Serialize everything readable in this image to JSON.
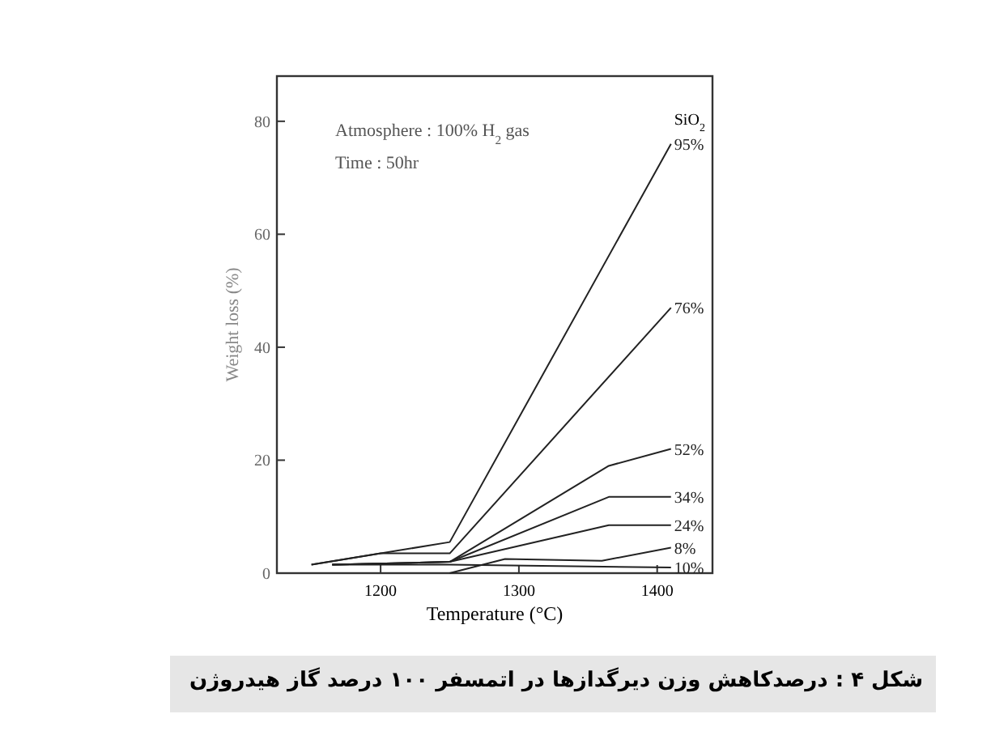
{
  "chart_data": {
    "type": "line",
    "xlabel": "Temperature (°C)",
    "ylabel": "Weight loss (%)",
    "legend_title": "SiO$_{2}$",
    "xlim": [
      1125,
      1440
    ],
    "ylim": [
      0,
      88
    ],
    "xticks": [
      1200,
      1300,
      1400
    ],
    "yticks": [
      0,
      20,
      40,
      60,
      80
    ],
    "annotations": [
      "Atmosphere : 100% H$_{2}$ gas",
      "Time : 50hr",
      "شکل ۴ : درصدکاهش وزن دیرگدازها در اتمسفر ۱۰۰ درصد گاز هیدروژن"
    ],
    "series": [
      {
        "name": "95%",
        "color": "#222222",
        "x": [
          1150,
          1250,
          1410
        ],
        "values": [
          1.5,
          5.5,
          76
        ]
      },
      {
        "name": "76%",
        "color": "#222222",
        "x": [
          1150,
          1200,
          1250,
          1410
        ],
        "values": [
          1.5,
          3.5,
          3.5,
          47
        ]
      },
      {
        "name": "52%",
        "color": "#222222",
        "x": [
          1165,
          1250,
          1365,
          1410
        ],
        "values": [
          1.5,
          2,
          19,
          22
        ]
      },
      {
        "name": "34%",
        "color": "#222222",
        "x": [
          1165,
          1250,
          1365,
          1410
        ],
        "values": [
          1.5,
          2,
          13.5,
          13.5
        ]
      },
      {
        "name": "24%",
        "color": "#222222",
        "x": [
          1165,
          1250,
          1365,
          1410
        ],
        "values": [
          1.5,
          2,
          8.5,
          8.5
        ]
      },
      {
        "name": "8%",
        "color": "#222222",
        "x": [
          1250,
          1290,
          1360,
          1410
        ],
        "values": [
          0,
          2.5,
          2.2,
          4.5
        ]
      },
      {
        "name": "10%",
        "color": "#222222",
        "x": [
          1165,
          1250,
          1410
        ],
        "values": [
          1.5,
          1.5,
          1
        ]
      }
    ]
  }
}
